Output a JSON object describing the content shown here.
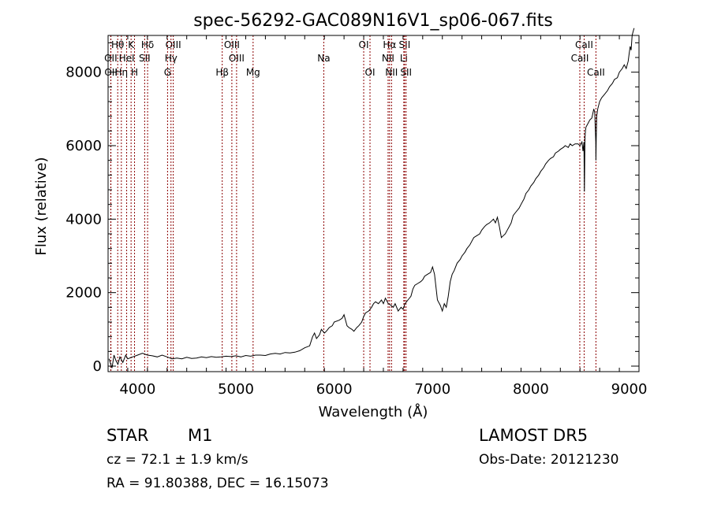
{
  "chart_data": {
    "type": "line",
    "title": "spec-56292-GAC089N16V1_sp06-067.fits",
    "xlabel": "Wavelength (Å)",
    "ylabel": "Flux (relative)",
    "xlim": [
      3700,
      9100
    ],
    "ylim": [
      -150,
      9000
    ],
    "xticks": [
      4000,
      5000,
      6000,
      7000,
      8000,
      9000
    ],
    "yticks": [
      0,
      2000,
      4000,
      6000,
      8000
    ],
    "grid": false,
    "line_color": "#000000",
    "marker_color": "#8b0000",
    "series": [
      {
        "x": [
          3710,
          3740,
          3760,
          3780,
          3800,
          3820,
          3850,
          3880,
          3900,
          3950,
          4000,
          4050,
          4100,
          4150,
          4200,
          4250,
          4300,
          4350,
          4400,
          4450,
          4500,
          4550,
          4600,
          4650,
          4700,
          4750,
          4800,
          4850,
          4900,
          4950,
          5000,
          5050,
          5100,
          5150,
          5200,
          5250,
          5300,
          5350,
          5400,
          5450,
          5500,
          5550,
          5600,
          5650,
          5700,
          5750,
          5780,
          5800,
          5820,
          5850,
          5870,
          5900,
          5920,
          5950,
          5980,
          6000,
          6050,
          6080,
          6100,
          6130,
          6150,
          6180,
          6200,
          6230,
          6250,
          6280,
          6300,
          6320,
          6350,
          6380,
          6400,
          6420,
          6450,
          6480,
          6500,
          6520,
          6550,
          6580,
          6600,
          6620,
          6650,
          6680,
          6700,
          6720,
          6750,
          6780,
          6800,
          6820,
          6850,
          6880,
          6900,
          6920,
          6950,
          6980,
          7000,
          7020,
          7050,
          7080,
          7100,
          7120,
          7140,
          7160,
          7180,
          7200,
          7220,
          7250,
          7280,
          7300,
          7330,
          7350,
          7380,
          7400,
          7420,
          7450,
          7480,
          7500,
          7530,
          7550,
          7580,
          7600,
          7620,
          7640,
          7660,
          7680,
          7700,
          7720,
          7740,
          7760,
          7780,
          7800,
          7820,
          7850,
          7880,
          7900,
          7930,
          7950,
          7980,
          8000,
          8030,
          8050,
          8080,
          8100,
          8130,
          8150,
          8180,
          8200,
          8230,
          8250,
          8280,
          8300,
          8330,
          8350,
          8380,
          8400,
          8420,
          8450,
          8480,
          8500,
          8520,
          8530,
          8540,
          8545,
          8550,
          8555,
          8560,
          8580,
          8600,
          8620,
          8640,
          8650,
          8660,
          8662,
          8665,
          8670,
          8680,
          8700,
          8720,
          8750,
          8780,
          8800,
          8830,
          8850,
          8880,
          8900,
          8930,
          8950,
          8970,
          8990,
          9000,
          9010,
          9020,
          9030,
          9040,
          9050
        ],
        "y": [
          200,
          -50,
          300,
          150,
          50,
          250,
          100,
          300,
          200,
          250,
          300,
          350,
          300,
          280,
          250,
          300,
          250,
          200,
          220,
          200,
          240,
          210,
          220,
          250,
          230,
          260,
          240,
          250,
          270,
          260,
          280,
          250,
          290,
          270,
          300,
          300,
          290,
          330,
          350,
          330,
          370,
          360,
          380,
          420,
          500,
          550,
          800,
          900,
          750,
          850,
          1000,
          900,
          950,
          1050,
          1100,
          1200,
          1250,
          1300,
          1400,
          1100,
          1050,
          1000,
          950,
          1050,
          1100,
          1200,
          1350,
          1450,
          1500,
          1600,
          1700,
          1750,
          1700,
          1800,
          1700,
          1850,
          1700,
          1650,
          1600,
          1700,
          1500,
          1600,
          1550,
          1700,
          1800,
          1900,
          2100,
          2200,
          2250,
          2300,
          2350,
          2450,
          2500,
          2550,
          2700,
          2500,
          1800,
          1650,
          1500,
          1700,
          1600,
          1900,
          2300,
          2500,
          2600,
          2800,
          2900,
          3000,
          3100,
          3200,
          3300,
          3400,
          3500,
          3550,
          3600,
          3700,
          3800,
          3850,
          3900,
          3950,
          4000,
          3900,
          4050,
          3800,
          3500,
          3550,
          3600,
          3700,
          3800,
          3900,
          4100,
          4200,
          4300,
          4400,
          4550,
          4700,
          4800,
          4900,
          5000,
          5100,
          5200,
          5300,
          5400,
          5500,
          5600,
          5650,
          5700,
          5800,
          5850,
          5900,
          5950,
          6000,
          5950,
          6050,
          6000,
          6050,
          6050,
          6000,
          6100,
          5850,
          6100,
          4750,
          6200,
          6400,
          6500,
          6600,
          6700,
          6750,
          7000,
          6900,
          6100,
          5600,
          6200,
          6800,
          7000,
          7200,
          7300,
          7400,
          7500,
          7600,
          7700,
          7800,
          7850,
          8000,
          8100,
          8200,
          8100,
          8300,
          8500,
          8700,
          8600,
          9000,
          9100,
          9200
        ]
      }
    ],
    "spectral_lines": [
      {
        "label": "Hθ",
        "x": 3798,
        "row": 1
      },
      {
        "label": "OII",
        "x": 3727,
        "row": 2
      },
      {
        "label": "OII",
        "x": 3729,
        "row": 3
      },
      {
        "label": "K",
        "x": 3934,
        "row": 1
      },
      {
        "label": "HeI",
        "x": 3889,
        "row": 2
      },
      {
        "label": "Hη",
        "x": 3835,
        "row": 3
      },
      {
        "label": "Hδ",
        "x": 4102,
        "row": 1
      },
      {
        "label": "SII",
        "x": 4072,
        "row": 2
      },
      {
        "label": "H",
        "x": 3969,
        "row": 3
      },
      {
        "label": "OIII",
        "x": 4363,
        "row": 1
      },
      {
        "label": "Hγ",
        "x": 4340,
        "row": 2
      },
      {
        "label": "G",
        "x": 4305,
        "row": 3
      },
      {
        "label": "OIII",
        "x": 4959,
        "row": 1
      },
      {
        "label": "OIII",
        "x": 5007,
        "row": 2
      },
      {
        "label": "Hβ",
        "x": 4861,
        "row": 3
      },
      {
        "label": "Mg",
        "x": 5175,
        "row": 3
      },
      {
        "label": "Na",
        "x": 5894,
        "row": 2
      },
      {
        "label": "OI",
        "x": 6300,
        "row": 1
      },
      {
        "label": "OI",
        "x": 6364,
        "row": 3
      },
      {
        "label": "Hα",
        "x": 6563,
        "row": 1
      },
      {
        "label": "NII",
        "x": 6548,
        "row": 2
      },
      {
        "label": "NII",
        "x": 6583,
        "row": 3
      },
      {
        "label": "SII",
        "x": 6716,
        "row": 1
      },
      {
        "label": "Li",
        "x": 6708,
        "row": 2
      },
      {
        "label": "SII",
        "x": 6731,
        "row": 3
      },
      {
        "label": "CaII",
        "x": 8542,
        "row": 1
      },
      {
        "label": "CaII",
        "x": 8498,
        "row": 2
      },
      {
        "label": "CaII",
        "x": 8662,
        "row": 3
      }
    ]
  },
  "info": {
    "object_type": "STAR",
    "subclass": "M1",
    "survey": "LAMOST DR5",
    "cz": "cz = 72.1 ± 1.9 km/s",
    "obs_date": "Obs-Date: 20121230",
    "coords": "RA =  91.80388, DEC =  16.15073"
  }
}
